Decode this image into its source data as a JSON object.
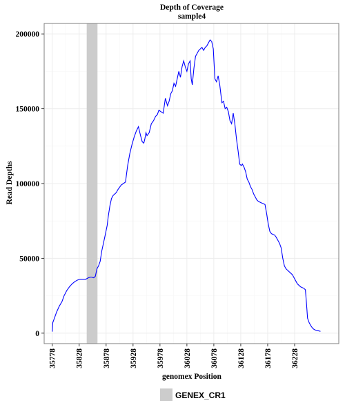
{
  "chart_data": {
    "type": "line",
    "title": "Depth of Coverage",
    "subtitle": "sample4",
    "xlabel": "genomex Position",
    "ylabel": "Read Depths",
    "xlim": [
      35763,
      36310
    ],
    "ylim": [
      -7000,
      207000
    ],
    "x_ticks": [
      35778,
      35828,
      35878,
      35928,
      35978,
      36028,
      36078,
      36128,
      36178,
      36228
    ],
    "y_ticks": [
      0,
      50000,
      100000,
      150000,
      200000
    ],
    "y_tick_labels": [
      "0",
      "50000",
      "100000",
      "150000",
      "200000"
    ],
    "grid": true,
    "legend_position": "bottom",
    "colors": {
      "line": "#0000ff",
      "region": "#cccccc",
      "grid_major": "#ececec",
      "grid_minor": "#f6f6f6",
      "border": "#7f7f7f"
    },
    "region": {
      "name": "GENEX_CR1",
      "x_start": 35842,
      "x_end": 35862
    },
    "series": [
      {
        "x": [
          35778,
          35779,
          35782,
          35786,
          35791,
          35796,
          35800,
          35805,
          35810,
          35815,
          35820,
          35825,
          35830,
          35835,
          35840,
          35845,
          35850,
          35855,
          35858,
          35861,
          35864,
          35867,
          35870,
          35873,
          35876,
          35880,
          35882,
          35885,
          35888,
          35891,
          35894,
          35897,
          35900,
          35903,
          35906,
          35910,
          35914,
          35918,
          35922,
          35926,
          35930,
          35934,
          35938,
          35942,
          35945,
          35948,
          35950,
          35952,
          35954,
          35958,
          35962,
          35966,
          35970,
          35973,
          35976,
          35980,
          35984,
          35988,
          35992,
          35995,
          35998,
          36001,
          36004,
          36007,
          36010,
          36013,
          36016,
          36019,
          36022,
          36025,
          36028,
          36031,
          36034,
          36036,
          36038,
          36041,
          36044,
          36047,
          36050,
          36053,
          36056,
          36059,
          36062,
          36065,
          36068,
          36071,
          36074,
          36077,
          36080,
          36083,
          36086,
          36089,
          36091,
          36093,
          36096,
          36099,
          36102,
          36105,
          36108,
          36111,
          36114,
          36117,
          36120,
          36123,
          36126,
          36129,
          36131,
          36134,
          36137,
          36140,
          36143,
          36146,
          36149,
          36152,
          36155,
          36158,
          36161,
          36164,
          36167,
          36170,
          36173,
          36176,
          36179,
          36182,
          36185,
          36188,
          36191,
          36194,
          36197,
          36200,
          36203,
          36206,
          36209,
          36212,
          36215,
          36218,
          36221,
          36224,
          36227,
          36230,
          36233,
          36236,
          36239,
          36242,
          36245,
          36248,
          36250,
          36252,
          36255,
          36258,
          36261,
          36264,
          36267,
          36270,
          36273,
          36276
        ],
        "y": [
          1000,
          7000,
          10000,
          14000,
          18000,
          21000,
          25000,
          28500,
          31000,
          33000,
          34500,
          35500,
          36000,
          36000,
          36000,
          37000,
          37500,
          37000,
          38000,
          43000,
          45000,
          48000,
          55000,
          60000,
          65000,
          72000,
          78000,
          85000,
          90000,
          92000,
          93000,
          94000,
          96000,
          97500,
          99000,
          100000,
          101000,
          112000,
          120000,
          126000,
          131000,
          135000,
          138000,
          132000,
          128000,
          127000,
          130000,
          134000,
          132000,
          134000,
          140000,
          142000,
          145000,
          146000,
          149000,
          148000,
          147000,
          157000,
          152000,
          155000,
          160000,
          162000,
          167000,
          165000,
          170000,
          175000,
          171000,
          178000,
          182000,
          178000,
          175000,
          180000,
          182000,
          170000,
          166000,
          177000,
          185000,
          187000,
          189000,
          190000,
          191000,
          189000,
          191000,
          192000,
          194000,
          196000,
          195000,
          190000,
          170000,
          168000,
          172000,
          166000,
          160000,
          154000,
          155000,
          150000,
          151000,
          148000,
          142000,
          140000,
          147000,
          140000,
          130000,
          122000,
          113000,
          112000,
          113000,
          111000,
          108000,
          103000,
          101000,
          98000,
          96000,
          93000,
          91000,
          89000,
          88000,
          87500,
          87000,
          86500,
          86000,
          80000,
          73000,
          68000,
          66500,
          66000,
          65500,
          64000,
          62000,
          60000,
          57000,
          50000,
          45000,
          43000,
          42000,
          41000,
          40000,
          39000,
          37000,
          35000,
          33000,
          32000,
          31000,
          30500,
          30000,
          29000,
          20000,
          10000,
          7000,
          5000,
          3500,
          2500,
          2000,
          1800,
          1500,
          1200
        ]
      }
    ]
  }
}
